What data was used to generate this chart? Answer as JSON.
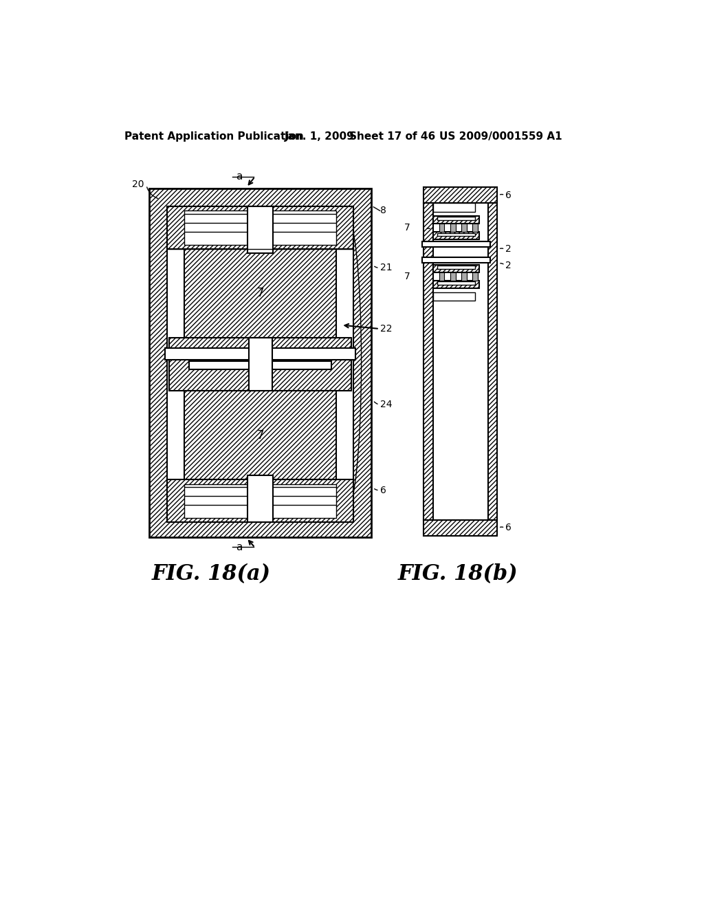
{
  "bg_color": "#ffffff",
  "header_text": "Patent Application Publication",
  "header_date": "Jan. 1, 2009",
  "header_sheet": "Sheet 17 of 46",
  "header_patent": "US 2009/0001559 A1",
  "fig_a_label": "FIG. 18(a)",
  "fig_b_label": "FIG. 18(b)",
  "hatch": "/////",
  "lw_outer": 2.0,
  "lw_med": 1.5,
  "lw_thin": 1.0
}
